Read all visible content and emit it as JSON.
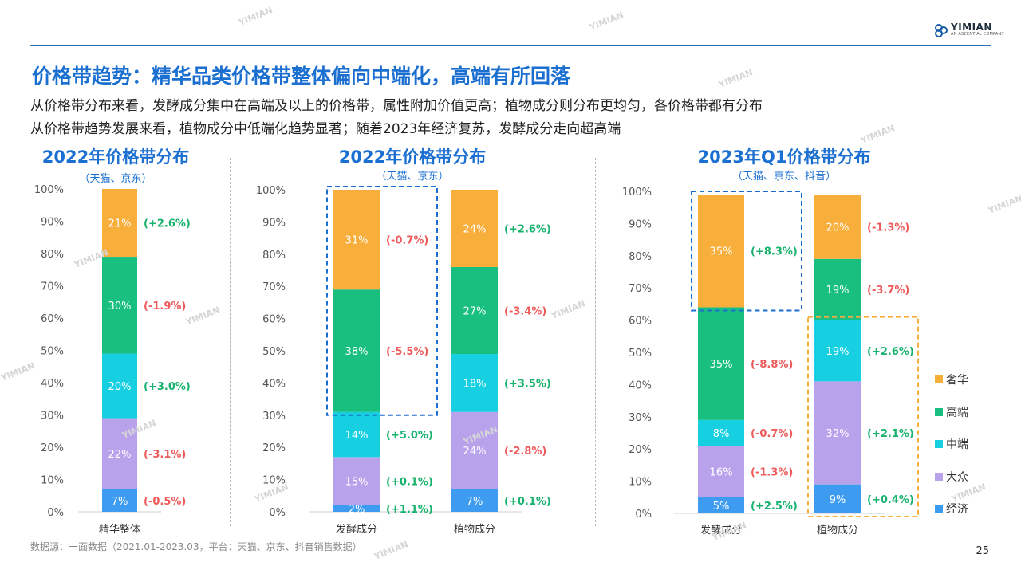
{
  "header": {
    "title": "价格带趋势：精华品类价格带整体偏向中端化，高端有所回落",
    "subtitle_1": "从价格带分布来看，发酵成分集中在高端及以上的价格带，属性附加价值更高；植物成分则分布更均匀，各价格带都有分布",
    "subtitle_2": "从价格带趋势发展来看，植物成分中低端化趋势显著；随着2023年经济复苏，发酵成分走向超高端"
  },
  "logo": {
    "text": "YIMIAN",
    "tagline": "AN ASCENTIAL COMPANY"
  },
  "watermark": "YIMIAN",
  "footer": {
    "source": "数据源：一面数据（2021.01-2023.03，平台：天猫、京东、抖音销售数据）",
    "page": "25"
  },
  "legend": [
    {
      "label": "奢华",
      "color": "#F7AE3B"
    },
    {
      "label": "高端",
      "color": "#18BF7E"
    },
    {
      "label": "中端",
      "color": "#16D0E2"
    },
    {
      "label": "大众",
      "color": "#B9A2EC"
    },
    {
      "label": "经济",
      "color": "#3D9CF0"
    }
  ],
  "chart_data": [
    {
      "type": "bar",
      "stacked": true,
      "title": "2022年价格带分布",
      "subtitle": "（天猫、京东）",
      "ylim": [
        0,
        100
      ],
      "yticks": [
        "0%",
        "10%",
        "20%",
        "30%",
        "40%",
        "50%",
        "60%",
        "70%",
        "80%",
        "90%",
        "100%"
      ],
      "categories": [
        "精华整体"
      ],
      "series": [
        {
          "name": "经济",
          "values": [
            7
          ],
          "labels": [
            "7%"
          ],
          "changes": [
            "(-0.5%)"
          ]
        },
        {
          "name": "大众",
          "values": [
            22
          ],
          "labels": [
            "22%"
          ],
          "changes": [
            "(-3.1%)"
          ]
        },
        {
          "name": "中端",
          "values": [
            20
          ],
          "labels": [
            "20%"
          ],
          "changes": [
            "(+3.0%)"
          ]
        },
        {
          "name": "高端",
          "values": [
            30
          ],
          "labels": [
            "30%"
          ],
          "changes": [
            "(-1.9%)"
          ]
        },
        {
          "name": "奢华",
          "values": [
            21
          ],
          "labels": [
            "21%"
          ],
          "changes": [
            "(+2.6%)"
          ]
        }
      ]
    },
    {
      "type": "bar",
      "stacked": true,
      "title": "2022年价格带分布",
      "subtitle": "（天猫、京东）",
      "ylim": [
        0,
        100
      ],
      "yticks": [
        "0%",
        "10%",
        "20%",
        "30%",
        "40%",
        "50%",
        "60%",
        "70%",
        "80%",
        "90%",
        "100%"
      ],
      "categories": [
        "发酵成分",
        "植物成分"
      ],
      "series": [
        {
          "name": "经济",
          "values": [
            2,
            7
          ],
          "labels": [
            "2%",
            "7%"
          ],
          "changes": [
            "(+1.1%)",
            "(+0.1%)"
          ]
        },
        {
          "name": "大众",
          "values": [
            15,
            24
          ],
          "labels": [
            "15%",
            "24%"
          ],
          "changes": [
            "(+0.1%)",
            "(-2.8%)"
          ]
        },
        {
          "name": "中端",
          "values": [
            14,
            18
          ],
          "labels": [
            "14%",
            "18%"
          ],
          "changes": [
            "(+5.0%)",
            "(+3.5%)"
          ]
        },
        {
          "name": "高端",
          "values": [
            38,
            27
          ],
          "labels": [
            "38%",
            "27%"
          ],
          "changes": [
            "(-5.5%)",
            "(-3.4%)"
          ]
        },
        {
          "name": "奢华",
          "values": [
            31,
            24
          ],
          "labels": [
            "31%",
            "24%"
          ],
          "changes": [
            "(-0.7%)",
            "(+2.6%)"
          ]
        }
      ],
      "highlight": {
        "category": "发酵成分",
        "series": [
          "高端",
          "奢华"
        ],
        "color": "#1a6fd1"
      }
    },
    {
      "type": "bar",
      "stacked": true,
      "title": "2023年Q1价格带分布",
      "subtitle": "（天猫、京东、抖音）",
      "ylim": [
        0,
        100
      ],
      "yticks": [
        "0%",
        "10%",
        "20%",
        "30%",
        "40%",
        "50%",
        "60%",
        "70%",
        "80%",
        "90%",
        "100%"
      ],
      "categories": [
        "发酵成分",
        "植物成分"
      ],
      "series": [
        {
          "name": "经济",
          "values": [
            5,
            9
          ],
          "labels": [
            "5%",
            "9%"
          ],
          "changes": [
            "(+2.5%)",
            "(+0.4%)"
          ]
        },
        {
          "name": "大众",
          "values": [
            16,
            32
          ],
          "labels": [
            "16%",
            "32%"
          ],
          "changes": [
            "(-1.3%)",
            "(+2.1%)"
          ]
        },
        {
          "name": "中端",
          "values": [
            8,
            19
          ],
          "labels": [
            "8%",
            "19%"
          ],
          "changes": [
            "(-0.7%)",
            "(+2.6%)"
          ]
        },
        {
          "name": "高端",
          "values": [
            35,
            19
          ],
          "labels": [
            "35%",
            "19%"
          ],
          "changes": [
            "(-8.8%)",
            "(-3.7%)"
          ]
        },
        {
          "name": "奢华",
          "values": [
            35,
            20
          ],
          "labels": [
            "35%",
            "20%"
          ],
          "changes": [
            "(+8.3%)",
            "(-1.3%)"
          ]
        }
      ],
      "highlights": [
        {
          "category": "发酵成分",
          "series": [
            "奢华"
          ],
          "color": "#1a6fd1"
        },
        {
          "category": "植物成分",
          "series": [
            "经济",
            "大众",
            "中端"
          ],
          "color": "#F7AE3B"
        }
      ]
    }
  ],
  "colors": {
    "positive": "#18B26E",
    "negative": "#EE5A5A",
    "title": "#1a6fd1"
  }
}
